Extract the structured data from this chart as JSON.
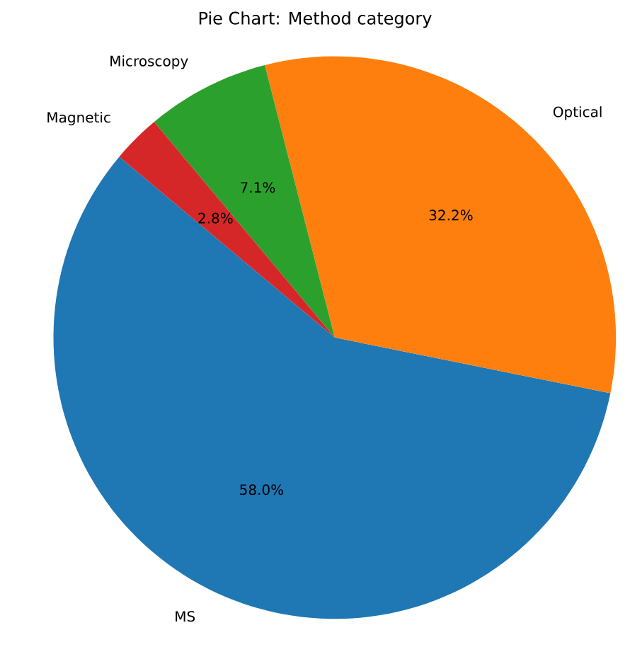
{
  "chart_data": {
    "type": "pie",
    "title": "Pie Chart: Method category",
    "categories": [
      "MS",
      "Optical",
      "Microscopy",
      "Magnetic"
    ],
    "values": [
      58.0,
      32.2,
      7.1,
      2.8
    ],
    "value_labels": [
      "58.0%",
      "32.2%",
      "7.1%",
      "2.8%"
    ],
    "colors": [
      "#1f77b4",
      "#ff7f0e",
      "#2ca02c",
      "#d62728"
    ]
  }
}
